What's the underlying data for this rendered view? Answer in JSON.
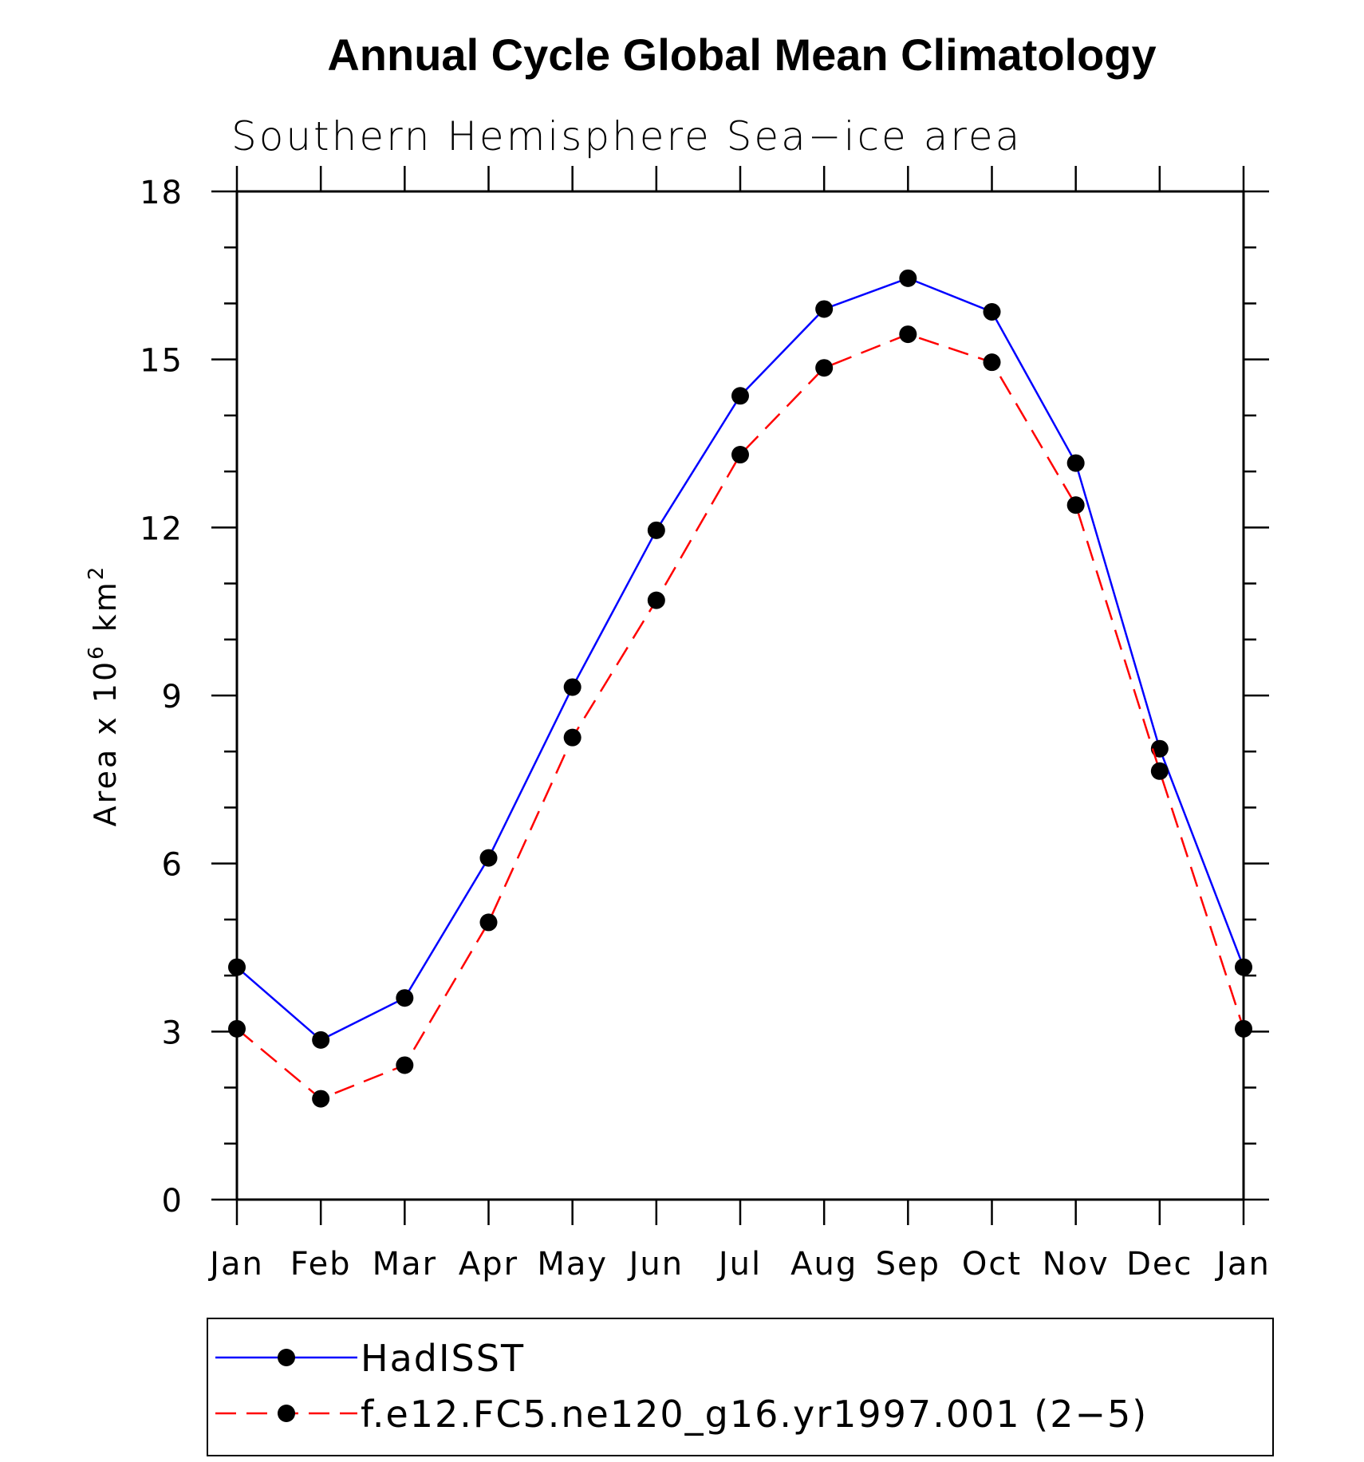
{
  "chart_data": {
    "type": "line",
    "title": "Annual Cycle Global Mean Climatology",
    "subtitle": "Southern Hemisphere Sea−ice area",
    "ylabel": {
      "base": "Area x 10",
      "exp": "6",
      "unit": " km",
      "unit_exp": "2"
    },
    "xlabel": "",
    "categories": [
      "Jan",
      "Feb",
      "Mar",
      "Apr",
      "May",
      "Jun",
      "Jul",
      "Aug",
      "Sep",
      "Oct",
      "Nov",
      "Dec",
      "Jan"
    ],
    "ylim": [
      0,
      18
    ],
    "yticks": [
      0,
      3,
      6,
      9,
      12,
      15,
      18
    ],
    "grid": false,
    "legend_position": "bottom",
    "series": [
      {
        "name": "HadISST",
        "color": "#0000ff",
        "dash": "solid",
        "marker": "filled-circle",
        "values": [
          4.15,
          2.85,
          3.6,
          6.1,
          9.15,
          11.95,
          14.35,
          15.9,
          16.45,
          15.85,
          13.15,
          8.05,
          4.15
        ]
      },
      {
        "name": "f.e12.FC5.ne120_g16.yr1997.001 (2−5)",
        "color": "#ff0000",
        "dash": "dashed",
        "marker": "filled-circle",
        "values": [
          3.05,
          1.8,
          2.4,
          4.95,
          8.25,
          10.7,
          13.3,
          14.85,
          15.45,
          14.95,
          12.4,
          7.65,
          3.05
        ]
      }
    ]
  }
}
